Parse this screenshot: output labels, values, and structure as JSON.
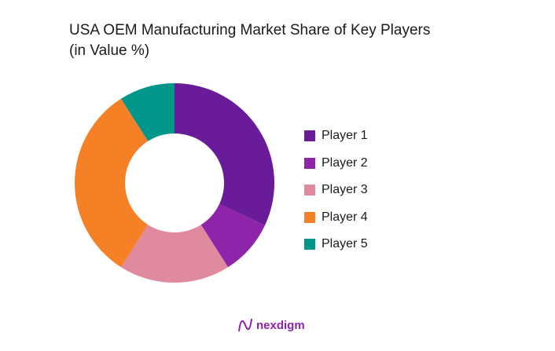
{
  "chart_data": {
    "type": "pie",
    "variant": "donut",
    "title_line1": "USA OEM Manufacturing Market Share of Key Players",
    "title_line2": "(in Value %)",
    "categories": [
      "Player 1",
      "Player 2",
      "Player 3",
      "Player 4",
      "Player 5"
    ],
    "values": [
      32,
      9,
      18,
      32,
      9
    ],
    "colors": [
      "#6a1b9a",
      "#8e24aa",
      "#e08aa0",
      "#f58025",
      "#00968a"
    ],
    "legend_position": "right"
  },
  "brand": {
    "name": "nexdigm",
    "color": "#8e24aa"
  }
}
